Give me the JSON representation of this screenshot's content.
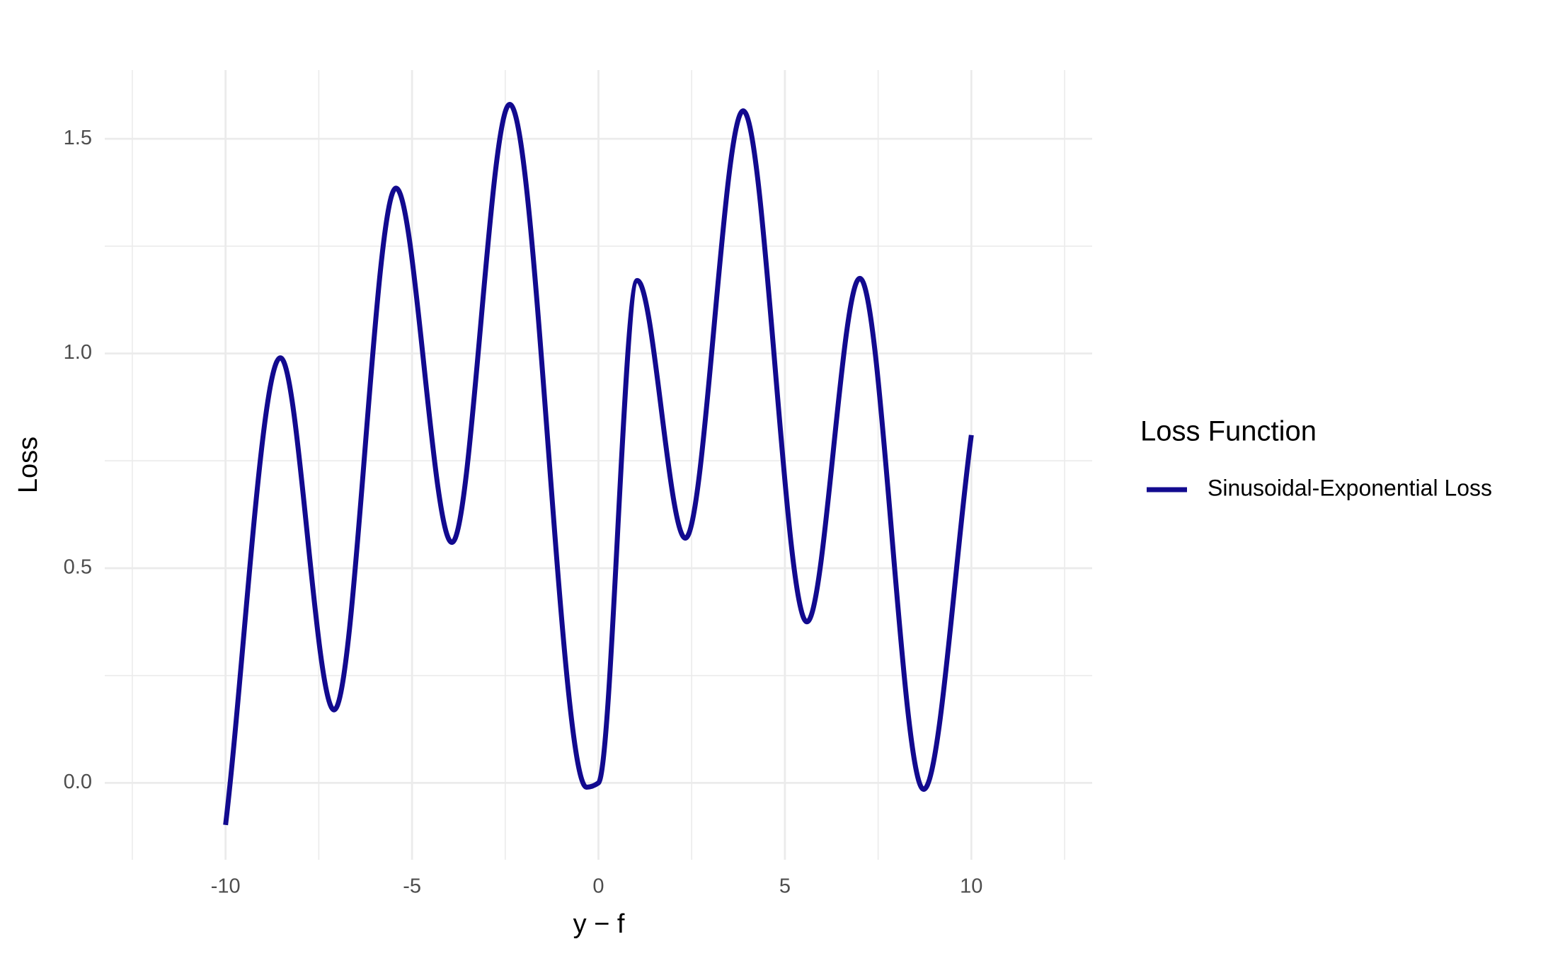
{
  "chart_data": {
    "type": "line",
    "x_label": "y − f",
    "y_label": "Loss",
    "legend_title": "Loss Function",
    "legend": "right",
    "x": [
      -10,
      -8.53,
      -7.09,
      -5.43,
      -3.93,
      -2.38,
      -0.32,
      0,
      1.04,
      2.33,
      3.88,
      5.59,
      7.01,
      8.72,
      10
    ],
    "series": [
      {
        "name": "Sinusoidal-Exponential Loss",
        "color": "#120a8f",
        "values": [
          -0.098,
          0.99,
          0.17,
          1.385,
          0.56,
          1.58,
          -0.01,
          0.0,
          1.17,
          0.57,
          1.565,
          0.375,
          1.175,
          -0.015,
          0.81
        ]
      }
    ],
    "xlim": [
      -13.24,
      13.24
    ],
    "ylim": [
      -0.179,
      1.66
    ],
    "xticks": [
      -10,
      -5,
      0,
      5,
      10
    ],
    "yticks": [
      {
        "value": 0,
        "label": "0.0"
      },
      0.5,
      {
        "value": 1,
        "label": "1.0"
      },
      1.5
    ],
    "x_minor_ticks": [
      -12.5,
      -7.5,
      -2.5,
      2.5,
      7.5,
      12.5
    ],
    "y_minor_ticks": [
      0.25,
      0.75,
      1.25
    ],
    "grid": true
  }
}
